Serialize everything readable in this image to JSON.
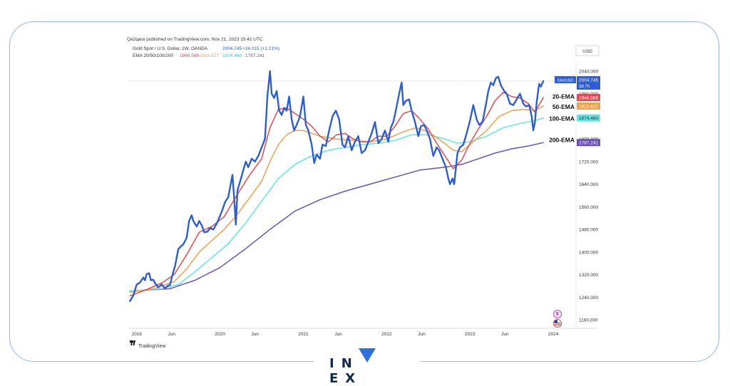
{
  "header": {
    "publisher_line": "Qa2qara published on TradingView.com, Nov 21, 2023 15:42 UTC",
    "symbol_line": "Gold Spot / U.S. Dollar, 1W, OANDA",
    "symbol_last": "2004.745",
    "symbol_change": "+24.015 (+1.21%)",
    "ema_label": "EMA 20/50/100/200",
    "ema_values": [
      "1946.566",
      "1916.627",
      "1874.460",
      "1787.241"
    ]
  },
  "currency": "USD",
  "watermark": "TradingView",
  "brand": {
    "letters": [
      "I",
      "N",
      "V",
      "E",
      "X"
    ]
  },
  "colors": {
    "price": "#2b5ed6",
    "ema20": "#e5484d",
    "ema50": "#f0a04b",
    "ema100": "#5ee6e6",
    "ema200": "#6a4fc2",
    "frame": "#8fb6f0"
  },
  "chart_data": {
    "type": "line",
    "title": "Gold Spot / U.S. Dollar, 1W, OANDA",
    "xlabel": "",
    "ylabel": "USD",
    "x_ticks": [
      "2019",
      "Jun",
      "2020",
      "Jun",
      "2021",
      "Jun",
      "2022",
      "Jun",
      "2023",
      "Jun",
      "2024"
    ],
    "y_ticks": [
      "2040.000",
      "1960.000",
      "1880.000",
      "1800.000",
      "1720.000",
      "1640.000",
      "1560.000",
      "1480.000",
      "1400.000",
      "1320.000",
      "1240.000",
      "1160.000"
    ],
    "ylim": [
      1130,
      2075
    ],
    "x_range": [
      2018.9,
      2024.05
    ],
    "grid": false,
    "reference_level": 2004.745,
    "series": [
      {
        "name": "XAUUSD",
        "points": [
          [
            2018.92,
            1226
          ],
          [
            2018.96,
            1246
          ],
          [
            2019.0,
            1285
          ],
          [
            2019.04,
            1292
          ],
          [
            2019.08,
            1310
          ],
          [
            2019.1,
            1300
          ],
          [
            2019.12,
            1322
          ],
          [
            2019.15,
            1325
          ],
          [
            2019.17,
            1300
          ],
          [
            2019.2,
            1302
          ],
          [
            2019.22,
            1290
          ],
          [
            2019.26,
            1275
          ],
          [
            2019.3,
            1285
          ],
          [
            2019.34,
            1272
          ],
          [
            2019.37,
            1280
          ],
          [
            2019.4,
            1283
          ],
          [
            2019.43,
            1320
          ],
          [
            2019.46,
            1350
          ],
          [
            2019.5,
            1410
          ],
          [
            2019.53,
            1420
          ],
          [
            2019.56,
            1427
          ],
          [
            2019.6,
            1450
          ],
          [
            2019.63,
            1510
          ],
          [
            2019.66,
            1530
          ],
          [
            2019.68,
            1510
          ],
          [
            2019.72,
            1490
          ],
          [
            2019.75,
            1510
          ],
          [
            2019.78,
            1495
          ],
          [
            2019.81,
            1470
          ],
          [
            2019.85,
            1472
          ],
          [
            2019.88,
            1485
          ],
          [
            2019.92,
            1480
          ],
          [
            2019.96,
            1500
          ],
          [
            2020.0,
            1528
          ],
          [
            2020.03,
            1550
          ],
          [
            2020.06,
            1576
          ],
          [
            2020.1,
            1595
          ],
          [
            2020.13,
            1643
          ],
          [
            2020.15,
            1673
          ],
          [
            2020.17,
            1590
          ],
          [
            2020.19,
            1497
          ],
          [
            2020.21,
            1618
          ],
          [
            2020.25,
            1658
          ],
          [
            2020.28,
            1690
          ],
          [
            2020.31,
            1720
          ],
          [
            2020.34,
            1700
          ],
          [
            2020.38,
            1730
          ],
          [
            2020.42,
            1720
          ],
          [
            2020.46,
            1740
          ],
          [
            2020.5,
            1770
          ],
          [
            2020.54,
            1800
          ],
          [
            2020.57,
            1955
          ],
          [
            2020.6,
            2040
          ],
          [
            2020.62,
            1960
          ],
          [
            2020.65,
            1945
          ],
          [
            2020.68,
            1970
          ],
          [
            2020.71,
            1900
          ],
          [
            2020.74,
            1885
          ],
          [
            2020.77,
            1910
          ],
          [
            2020.8,
            1900
          ],
          [
            2020.83,
            1950
          ],
          [
            2020.86,
            1870
          ],
          [
            2020.89,
            1830
          ],
          [
            2020.92,
            1850
          ],
          [
            2020.96,
            1880
          ],
          [
            2021.0,
            1950
          ],
          [
            2021.03,
            1850
          ],
          [
            2021.06,
            1830
          ],
          [
            2021.1,
            1780
          ],
          [
            2021.13,
            1715
          ],
          [
            2021.16,
            1745
          ],
          [
            2021.2,
            1730
          ],
          [
            2021.23,
            1780
          ],
          [
            2021.27,
            1775
          ],
          [
            2021.31,
            1830
          ],
          [
            2021.35,
            1880
          ],
          [
            2021.39,
            1900
          ],
          [
            2021.43,
            1870
          ],
          [
            2021.47,
            1780
          ],
          [
            2021.5,
            1770
          ],
          [
            2021.54,
            1810
          ],
          [
            2021.58,
            1760
          ],
          [
            2021.62,
            1790
          ],
          [
            2021.66,
            1810
          ],
          [
            2021.7,
            1750
          ],
          [
            2021.74,
            1760
          ],
          [
            2021.78,
            1790
          ],
          [
            2021.82,
            1820
          ],
          [
            2021.86,
            1860
          ],
          [
            2021.9,
            1785
          ],
          [
            2021.94,
            1800
          ],
          [
            2021.98,
            1830
          ],
          [
            2022.02,
            1790
          ],
          [
            2022.05,
            1840
          ],
          [
            2022.08,
            1860
          ],
          [
            2022.11,
            1900
          ],
          [
            2022.15,
            1960
          ],
          [
            2022.18,
            2000
          ],
          [
            2022.2,
            1920
          ],
          [
            2022.23,
            1935
          ],
          [
            2022.27,
            1940
          ],
          [
            2022.3,
            1900
          ],
          [
            2022.34,
            1860
          ],
          [
            2022.38,
            1810
          ],
          [
            2022.41,
            1845
          ],
          [
            2022.45,
            1850
          ],
          [
            2022.48,
            1830
          ],
          [
            2022.52,
            1800
          ],
          [
            2022.56,
            1740
          ],
          [
            2022.6,
            1770
          ],
          [
            2022.63,
            1760
          ],
          [
            2022.67,
            1730
          ],
          [
            2022.71,
            1700
          ],
          [
            2022.74,
            1660
          ],
          [
            2022.76,
            1640
          ],
          [
            2022.79,
            1660
          ],
          [
            2022.81,
            1640
          ],
          [
            2022.85,
            1750
          ],
          [
            2022.88,
            1770
          ],
          [
            2022.92,
            1780
          ],
          [
            2022.96,
            1820
          ],
          [
            2023.0,
            1865
          ],
          [
            2023.04,
            1920
          ],
          [
            2023.08,
            1870
          ],
          [
            2023.11,
            1850
          ],
          [
            2023.15,
            1860
          ],
          [
            2023.19,
            1920
          ],
          [
            2023.22,
            1970
          ],
          [
            2023.25,
            2000
          ],
          [
            2023.28,
            1990
          ],
          [
            2023.31,
            2015
          ],
          [
            2023.34,
            2020
          ],
          [
            2023.37,
            1990
          ],
          [
            2023.41,
            1970
          ],
          [
            2023.44,
            1960
          ],
          [
            2023.48,
            1925
          ],
          [
            2023.52,
            1920
          ],
          [
            2023.56,
            1940
          ],
          [
            2023.6,
            1960
          ],
          [
            2023.64,
            1925
          ],
          [
            2023.67,
            1915
          ],
          [
            2023.71,
            1920
          ],
          [
            2023.74,
            1880
          ],
          [
            2023.76,
            1830
          ],
          [
            2023.78,
            1860
          ],
          [
            2023.8,
            1930
          ],
          [
            2023.83,
            1995
          ],
          [
            2023.85,
            1985
          ],
          [
            2023.88,
            2005
          ]
        ]
      },
      {
        "name": "20-EMA",
        "points": [
          [
            2018.92,
            1245
          ],
          [
            2019.1,
            1265
          ],
          [
            2019.3,
            1290
          ],
          [
            2019.45,
            1320
          ],
          [
            2019.6,
            1390
          ],
          [
            2019.75,
            1470
          ],
          [
            2019.9,
            1490
          ],
          [
            2020.05,
            1525
          ],
          [
            2020.2,
            1600
          ],
          [
            2020.35,
            1670
          ],
          [
            2020.5,
            1730
          ],
          [
            2020.6,
            1840
          ],
          [
            2020.7,
            1905
          ],
          [
            2020.8,
            1910
          ],
          [
            2020.9,
            1890
          ],
          [
            2021.0,
            1870
          ],
          [
            2021.1,
            1845
          ],
          [
            2021.2,
            1810
          ],
          [
            2021.3,
            1790
          ],
          [
            2021.4,
            1815
          ],
          [
            2021.5,
            1820
          ],
          [
            2021.6,
            1800
          ],
          [
            2021.7,
            1790
          ],
          [
            2021.8,
            1790
          ],
          [
            2021.9,
            1810
          ],
          [
            2022.0,
            1810
          ],
          [
            2022.1,
            1845
          ],
          [
            2022.2,
            1890
          ],
          [
            2022.3,
            1900
          ],
          [
            2022.4,
            1870
          ],
          [
            2022.5,
            1835
          ],
          [
            2022.6,
            1785
          ],
          [
            2022.7,
            1740
          ],
          [
            2022.8,
            1695
          ],
          [
            2022.9,
            1725
          ],
          [
            2023.0,
            1785
          ],
          [
            2023.1,
            1835
          ],
          [
            2023.2,
            1880
          ],
          [
            2023.3,
            1935
          ],
          [
            2023.4,
            1965
          ],
          [
            2023.5,
            1950
          ],
          [
            2023.6,
            1945
          ],
          [
            2023.7,
            1925
          ],
          [
            2023.78,
            1895
          ],
          [
            2023.88,
            1946.566
          ]
        ]
      },
      {
        "name": "50-EMA",
        "points": [
          [
            2018.92,
            1258
          ],
          [
            2019.2,
            1270
          ],
          [
            2019.45,
            1295
          ],
          [
            2019.6,
            1340
          ],
          [
            2019.75,
            1400
          ],
          [
            2019.9,
            1440
          ],
          [
            2020.05,
            1480
          ],
          [
            2020.2,
            1530
          ],
          [
            2020.35,
            1590
          ],
          [
            2020.5,
            1650
          ],
          [
            2020.6,
            1720
          ],
          [
            2020.7,
            1780
          ],
          [
            2020.8,
            1815
          ],
          [
            2020.9,
            1830
          ],
          [
            2021.0,
            1830
          ],
          [
            2021.2,
            1810
          ],
          [
            2021.4,
            1800
          ],
          [
            2021.6,
            1795
          ],
          [
            2021.8,
            1790
          ],
          [
            2022.0,
            1800
          ],
          [
            2022.2,
            1825
          ],
          [
            2022.35,
            1840
          ],
          [
            2022.5,
            1825
          ],
          [
            2022.65,
            1795
          ],
          [
            2022.8,
            1760
          ],
          [
            2022.9,
            1755
          ],
          [
            2023.0,
            1780
          ],
          [
            2023.2,
            1830
          ],
          [
            2023.35,
            1880
          ],
          [
            2023.5,
            1900
          ],
          [
            2023.65,
            1905
          ],
          [
            2023.78,
            1900
          ],
          [
            2023.88,
            1916.627
          ]
        ]
      },
      {
        "name": "100-EMA",
        "points": [
          [
            2018.92,
            1262
          ],
          [
            2019.3,
            1270
          ],
          [
            2019.5,
            1285
          ],
          [
            2019.7,
            1330
          ],
          [
            2019.9,
            1380
          ],
          [
            2020.1,
            1430
          ],
          [
            2020.3,
            1500
          ],
          [
            2020.5,
            1580
          ],
          [
            2020.7,
            1660
          ],
          [
            2020.9,
            1710
          ],
          [
            2021.1,
            1740
          ],
          [
            2021.3,
            1760
          ],
          [
            2021.5,
            1770
          ],
          [
            2021.7,
            1780
          ],
          [
            2021.9,
            1785
          ],
          [
            2022.1,
            1795
          ],
          [
            2022.3,
            1815
          ],
          [
            2022.5,
            1815
          ],
          [
            2022.7,
            1800
          ],
          [
            2022.85,
            1785
          ],
          [
            2023.0,
            1790
          ],
          [
            2023.2,
            1810
          ],
          [
            2023.4,
            1840
          ],
          [
            2023.6,
            1855
          ],
          [
            2023.78,
            1865
          ],
          [
            2023.88,
            1874.46
          ]
        ]
      },
      {
        "name": "200-EMA",
        "points": [
          [
            2018.92,
            1262
          ],
          [
            2019.4,
            1270
          ],
          [
            2019.7,
            1300
          ],
          [
            2020.0,
            1345
          ],
          [
            2020.3,
            1410
          ],
          [
            2020.6,
            1480
          ],
          [
            2020.9,
            1545
          ],
          [
            2021.2,
            1585
          ],
          [
            2021.5,
            1615
          ],
          [
            2021.8,
            1640
          ],
          [
            2022.1,
            1665
          ],
          [
            2022.4,
            1690
          ],
          [
            2022.7,
            1700
          ],
          [
            2022.9,
            1710
          ],
          [
            2023.1,
            1730
          ],
          [
            2023.3,
            1750
          ],
          [
            2023.5,
            1765
          ],
          [
            2023.7,
            1775
          ],
          [
            2023.88,
            1787.241
          ]
        ]
      }
    ],
    "price_tags": [
      {
        "series": "XAUUSD",
        "label": "XAUUSD",
        "value": "2004.745",
        "sub": "3d 7h",
        "level": 2004.745
      },
      {
        "series": "20-EMA",
        "value": "1946.566",
        "level": 1946.566
      },
      {
        "series": "50-EMA",
        "value": "1916.627",
        "level": 1916.627
      },
      {
        "series": "100-EMA",
        "value": "1874.460",
        "level": 1874.46
      },
      {
        "series": "200-EMA",
        "value": "1787.241",
        "level": 1787.241
      }
    ],
    "annotations": [
      {
        "text": "20-EMA",
        "level": 1950
      },
      {
        "text": "50-EMA",
        "level": 1914
      },
      {
        "text": "100-EMA",
        "level": 1872
      },
      {
        "text": "200-EMA",
        "level": 1796
      }
    ]
  }
}
